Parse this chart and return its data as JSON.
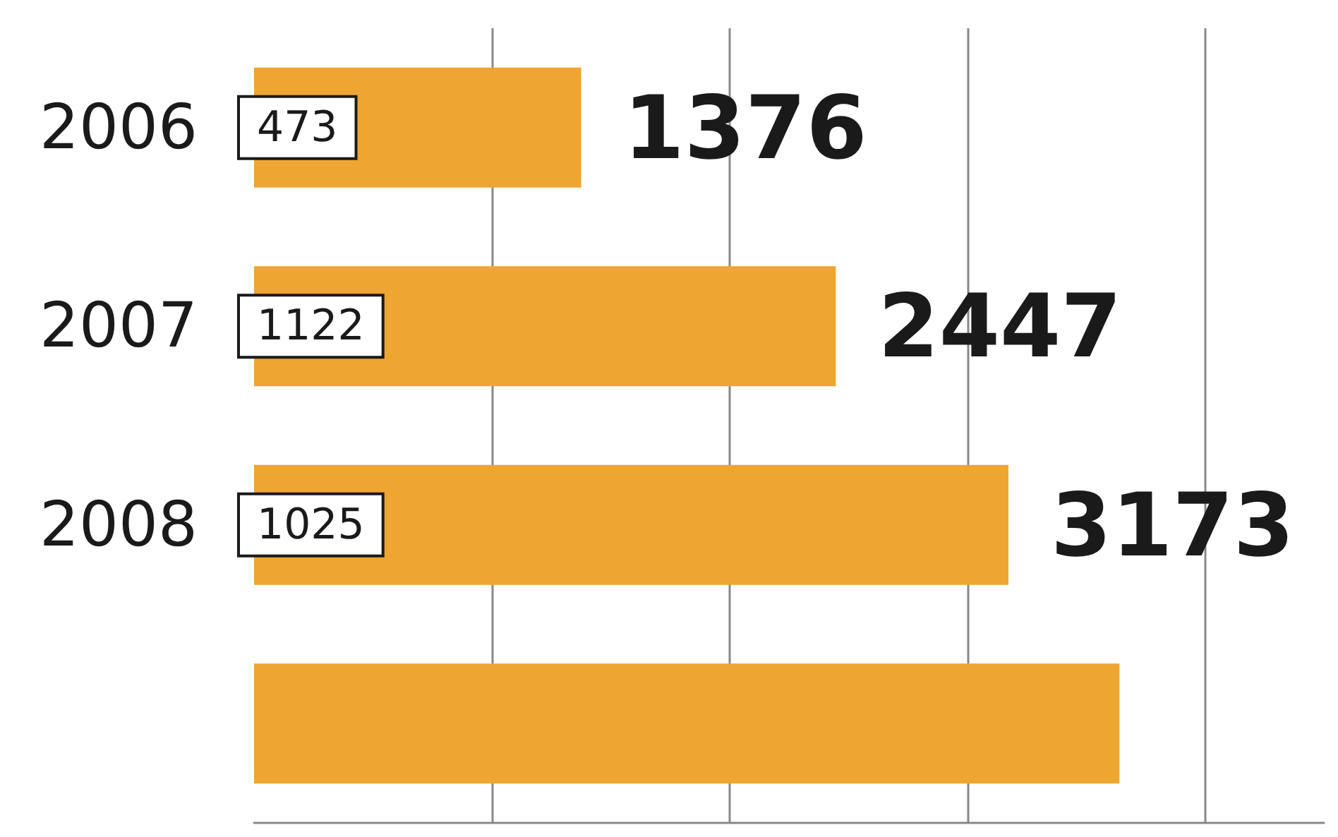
{
  "chart_data": {
    "type": "bar",
    "orientation": "horizontal",
    "categories": [
      "2006",
      "2007",
      "2008",
      null
    ],
    "values": [
      1376,
      2447,
      3173,
      3640
    ],
    "value_labels": [
      "1376",
      "2447",
      "3173",
      null
    ],
    "color": "#eea532",
    "xlim": [
      0,
      4500
    ],
    "xticks": [
      {
        "value": 1000,
        "label": null
      },
      {
        "value": 2000,
        "label": null
      },
      {
        "value": 3000,
        "label": null
      },
      {
        "value": 4000,
        "label": null
      }
    ],
    "grid": "x",
    "tick_labels": "y",
    "annotations": [
      "473",
      "1122",
      "1025"
    ]
  }
}
